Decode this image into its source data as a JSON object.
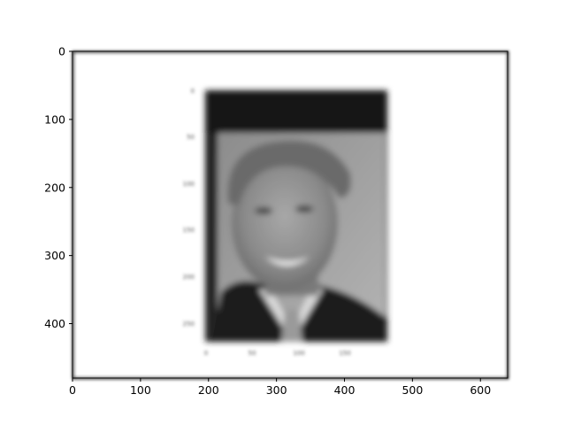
{
  "chart_data": {
    "type": "image",
    "title": "",
    "xlabel": "",
    "ylabel": "",
    "xlim": [
      0,
      640
    ],
    "ylim": [
      480,
      0
    ],
    "y_axis_inverted": true,
    "x_ticks": [
      "0",
      "100",
      "200",
      "300",
      "400",
      "500",
      "600"
    ],
    "y_ticks": [
      "0",
      "100",
      "200",
      "300",
      "400"
    ],
    "grid": false,
    "legend": "none",
    "image_description": "blurred grayscale screenshot of an image plot showing a portrait photo of a smiling man in a dark suit with a dark band across the top",
    "embedded_plot": {
      "x_ticks": [
        "0",
        "50",
        "100",
        "150"
      ],
      "y_ticks": [
        "0",
        "50",
        "100",
        "150",
        "200",
        "250"
      ]
    },
    "colors": {
      "frame_fill": "#ffffff",
      "axis": "#000000",
      "dark_band": "#141414",
      "photo_bg": "#9a9a9a",
      "suit": "#1c1c1c",
      "face": "#8a8a8a",
      "hair": "#6a6a6a"
    }
  }
}
